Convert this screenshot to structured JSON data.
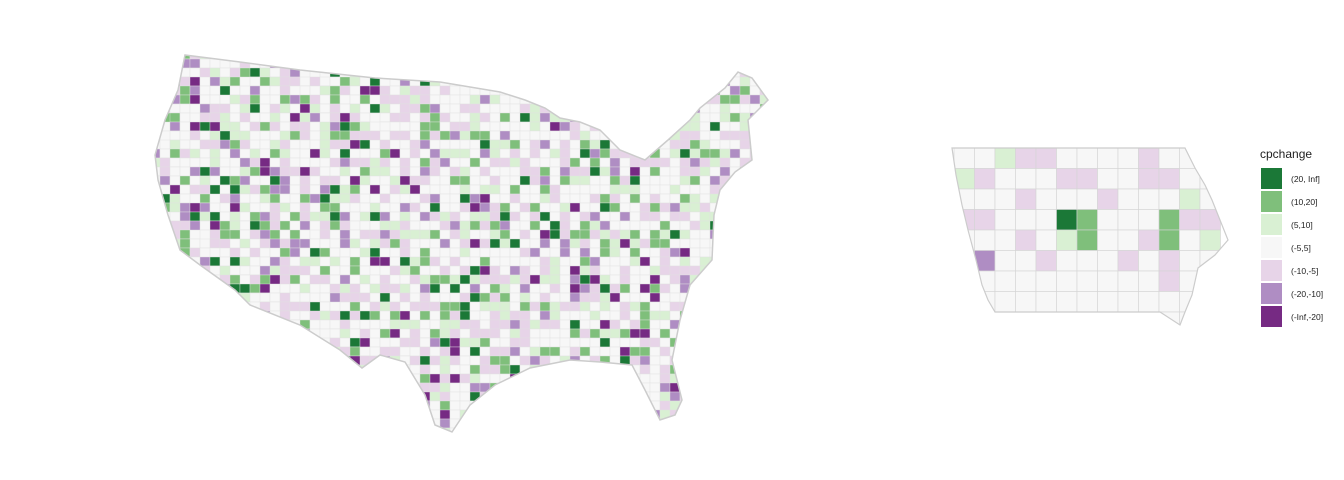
{
  "legend": {
    "title": "cpchange",
    "items": [
      {
        "label": "(20, Inf]",
        "color": "#1b7837"
      },
      {
        "label": "(10,20]",
        "color": "#7fbf7b"
      },
      {
        "label": "(5,10]",
        "color": "#d9f0d3"
      },
      {
        "label": "(-5,5]",
        "color": "#f7f7f7"
      },
      {
        "label": "(-10,-5]",
        "color": "#e7d4e8"
      },
      {
        "label": "(-20,-10]",
        "color": "#af8dc3"
      },
      {
        "label": "(-Inf,-20]",
        "color": "#762a83"
      }
    ]
  },
  "maps": [
    {
      "region": "contiguous-us-counties",
      "variable": "cpchange"
    },
    {
      "region": "iowa-counties",
      "variable": "cpchange"
    }
  ],
  "border_color": "#cccccc"
}
